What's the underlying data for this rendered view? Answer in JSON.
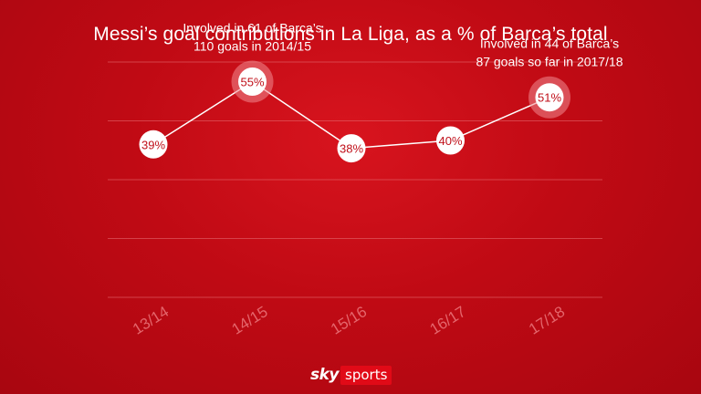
{
  "chart_data": {
    "type": "line",
    "title": "Messi’s goal contributions in La Liga, as a % of Barca’s total",
    "categories": [
      "13/14",
      "14/15",
      "15/16",
      "16/17",
      "17/18"
    ],
    "series": [
      {
        "values": [
          39,
          55,
          38,
          40,
          51
        ]
      }
    ],
    "point_labels": [
      "39%",
      "55%",
      "38%",
      "40%",
      "51%"
    ],
    "highlighted": [
      false,
      true,
      false,
      false,
      true
    ],
    "annotations": [
      {
        "category": "14/15",
        "lines": [
          "Involved in 61 of Barca’s",
          "110 goals in 2014/15"
        ]
      },
      {
        "category": "17/18",
        "lines": [
          "Involved in 44 of Barca’s",
          "87 goals so far in 2017/18"
        ]
      }
    ],
    "xlabel": "",
    "ylabel": "",
    "ylim": [
      0,
      60
    ],
    "grid": true,
    "colors": {
      "line": "#ffffff",
      "marker_fill": "#ffffff",
      "marker_text": "#c0101a",
      "halo": "#f08a8f"
    }
  },
  "branding": {
    "sky": "sky",
    "sports": "sports"
  }
}
